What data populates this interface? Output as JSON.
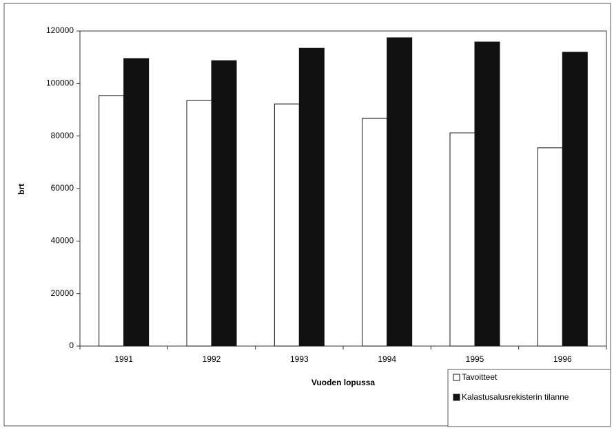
{
  "chart_data": {
    "type": "bar",
    "xlabel": "Vuoden lopussa",
    "ylabel": "brt",
    "categories": [
      "1991",
      "1992",
      "1993",
      "1994",
      "1995",
      "1996"
    ],
    "series": [
      {
        "name": "Tavoitteet",
        "color": "#ffffff",
        "values": [
          95400,
          93500,
          92200,
          86700,
          81200,
          75500
        ]
      },
      {
        "name": "Kalastusalusrekisterin tilanne",
        "color": "#111111",
        "values": [
          109500,
          108700,
          113400,
          117400,
          115800,
          111900
        ]
      }
    ],
    "ylim": [
      0,
      120000
    ],
    "yticks": [
      0,
      20000,
      40000,
      60000,
      80000,
      100000,
      120000
    ],
    "grid": false,
    "legend": "bottom-right"
  }
}
